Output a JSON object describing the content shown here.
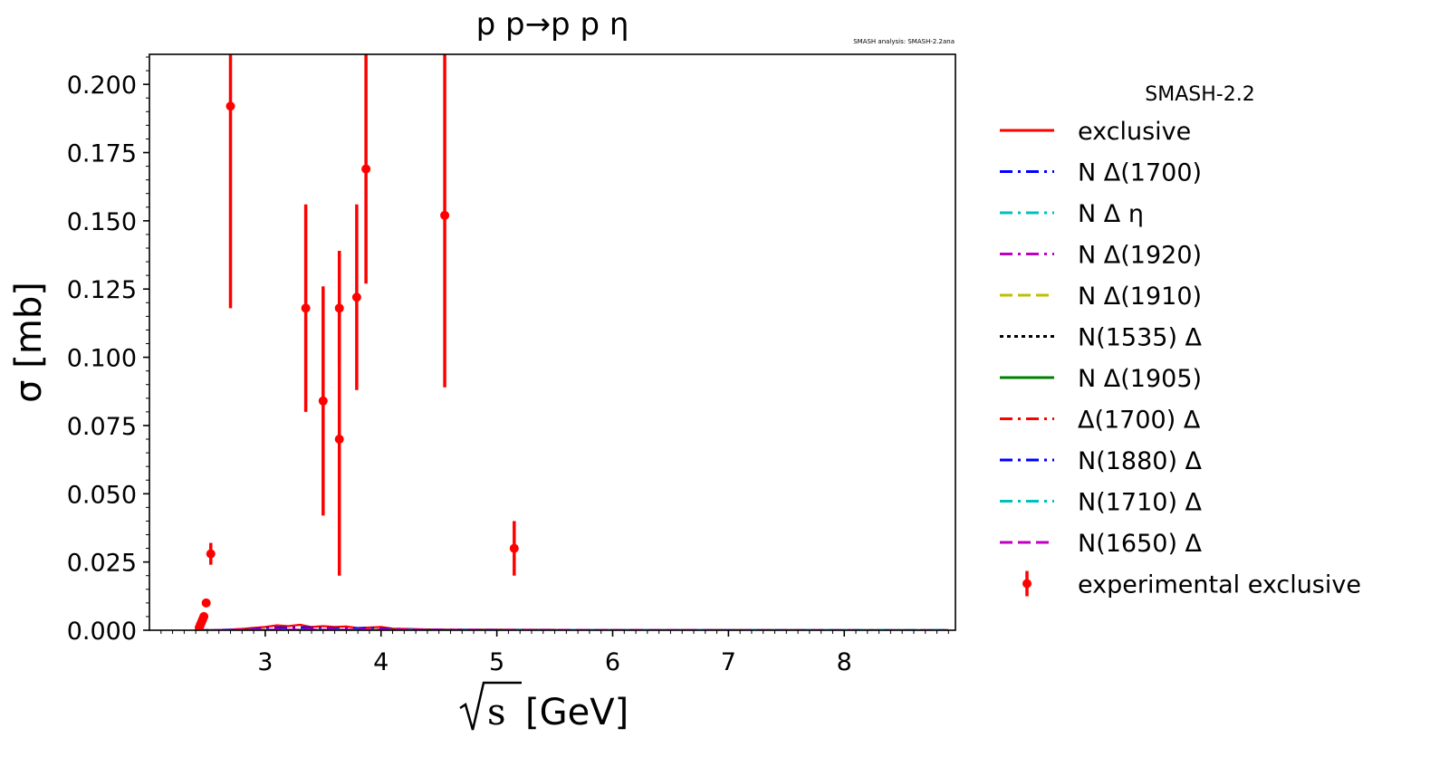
{
  "chart_data": {
    "type": "scatter",
    "title": "p p→p p η",
    "annotation": "SMASH analysis: SMASH-2.2ana",
    "xlabel_radical": "s",
    "xlabel_unit": "[GeV]",
    "ylabel": "σ [mb]",
    "xlim": [
      2.0,
      8.96
    ],
    "ylim": [
      0.0,
      0.211
    ],
    "xticks": [
      3,
      4,
      5,
      6,
      7,
      8
    ],
    "yticks": [
      0.0,
      0.025,
      0.05,
      0.075,
      0.1,
      0.125,
      0.15,
      0.175,
      0.2
    ],
    "ytick_labels": [
      "0.000",
      "0.025",
      "0.050",
      "0.075",
      "0.100",
      "0.125",
      "0.150",
      "0.175",
      "0.200"
    ],
    "grid": false,
    "legend": {
      "title": "SMASH-2.2",
      "placement": "outside-right",
      "entries": [
        {
          "label": "exclusive",
          "color": "#ff0000",
          "style": "solid"
        },
        {
          "label": "N Δ(1700)",
          "color": "#0000ff",
          "style": "dashdot"
        },
        {
          "label": "N Δ η",
          "color": "#00bfbf",
          "style": "dashdot"
        },
        {
          "label": "N Δ(1920)",
          "color": "#bf00bf",
          "style": "dashdot"
        },
        {
          "label": "N Δ(1910)",
          "color": "#bfbf00",
          "style": "dashed"
        },
        {
          "label": "N(1535) Δ",
          "color": "#000000",
          "style": "dotted"
        },
        {
          "label": "N Δ(1905)",
          "color": "#008000",
          "style": "solid"
        },
        {
          "label": "Δ(1700) Δ",
          "color": "#ff0000",
          "style": "dashdot"
        },
        {
          "label": "N(1880) Δ",
          "color": "#0000ff",
          "style": "dashdot"
        },
        {
          "label": "N(1710) Δ",
          "color": "#00bfbf",
          "style": "dashdot"
        },
        {
          "label": "N(1650) Δ",
          "color": "#bf00bf",
          "style": "dashed"
        },
        {
          "label": "experimental exclusive",
          "color": "#ff0000",
          "style": "errorbar"
        }
      ]
    },
    "experimental": [
      {
        "x": 2.43,
        "y": 0.001,
        "err": 0.0
      },
      {
        "x": 2.44,
        "y": 0.002,
        "err": 0.0
      },
      {
        "x": 2.45,
        "y": 0.003,
        "err": 0.0
      },
      {
        "x": 2.46,
        "y": 0.004,
        "err": 0.0
      },
      {
        "x": 2.47,
        "y": 0.005,
        "err": 0.0
      },
      {
        "x": 2.49,
        "y": 0.01,
        "err": 0.0
      },
      {
        "x": 2.53,
        "y": 0.028,
        "err": 0.004
      },
      {
        "x": 2.7,
        "y": 0.192,
        "err": 0.074
      },
      {
        "x": 3.35,
        "y": 0.118,
        "err": 0.038
      },
      {
        "x": 3.5,
        "y": 0.084,
        "err": 0.042
      },
      {
        "x": 3.64,
        "y": 0.118,
        "err": 0.021
      },
      {
        "x": 3.64,
        "y": 0.07,
        "err": 0.05
      },
      {
        "x": 3.79,
        "y": 0.122,
        "err": 0.034
      },
      {
        "x": 3.87,
        "y": 0.169,
        "err": 0.042
      },
      {
        "x": 4.55,
        "y": 0.152,
        "err": 0.063
      },
      {
        "x": 5.15,
        "y": 0.03,
        "err": 0.01
      }
    ],
    "series": [
      {
        "name": "exclusive",
        "color": "#ff0000",
        "style": "solid",
        "x": [
          2.4,
          2.6,
          2.8,
          3.0,
          3.1,
          3.2,
          3.3,
          3.4,
          3.5,
          3.6,
          3.7,
          3.8,
          3.9,
          4.0,
          4.1,
          4.2,
          4.4,
          4.6,
          5.0,
          6.0,
          7.0,
          8.0,
          8.9
        ],
        "y": [
          0.0,
          0.0,
          0.0005,
          0.0012,
          0.0018,
          0.0015,
          0.002,
          0.0012,
          0.0015,
          0.0012,
          0.0014,
          0.0008,
          0.001,
          0.0012,
          0.0006,
          0.0005,
          0.0003,
          0.0002,
          0.0002,
          0.0001,
          0.0001,
          0.0,
          0.0
        ]
      },
      {
        "name": "N Δ(1700)",
        "color": "#0000ff",
        "style": "dashdot",
        "x": [
          2.4,
          2.8,
          3.0,
          3.1,
          3.2,
          3.3,
          3.5,
          3.7,
          3.9,
          4.0,
          4.2,
          4.5,
          5.0,
          6.0,
          8.9
        ],
        "y": [
          0.0,
          0.0003,
          0.0008,
          0.001,
          0.0009,
          0.0011,
          0.0008,
          0.0007,
          0.0009,
          0.0006,
          0.0004,
          0.0002,
          0.0001,
          0.0001,
          0.0
        ]
      },
      {
        "name": "N Δ η",
        "color": "#00bfbf",
        "style": "dashdot",
        "x": [
          2.4,
          3.0,
          4.0,
          5.0,
          6.0,
          7.0,
          8.9
        ],
        "y": [
          0.0,
          0.0003,
          0.0002,
          0.0002,
          0.0001,
          0.0001,
          0.0001
        ]
      },
      {
        "name": "N Δ(1920)",
        "color": "#bf00bf",
        "style": "dashdot",
        "x": [
          2.4,
          3.0,
          3.5,
          4.0,
          5.0,
          8.9
        ],
        "y": [
          0.0,
          0.0004,
          0.0005,
          0.0003,
          0.0001,
          0.0
        ]
      },
      {
        "name": "N Δ(1910)",
        "color": "#bfbf00",
        "style": "dashed",
        "x": [
          2.4,
          3.0,
          4.0,
          6.0,
          8.9
        ],
        "y": [
          0.0,
          0.0001,
          0.0001,
          0.0,
          0.0
        ]
      },
      {
        "name": "N(1535) Δ",
        "color": "#000000",
        "style": "dotted",
        "x": [
          2.4,
          3.0,
          4.0,
          6.0,
          8.9
        ],
        "y": [
          0.0,
          0.0001,
          0.0001,
          0.0,
          0.0
        ]
      },
      {
        "name": "N Δ(1905)",
        "color": "#008000",
        "style": "solid",
        "x": [
          2.4,
          3.0,
          4.0,
          6.0,
          8.9
        ],
        "y": [
          0.0,
          0.0001,
          0.0001,
          0.0,
          0.0
        ]
      },
      {
        "name": "Δ(1700) Δ",
        "color": "#ff0000",
        "style": "dashdot",
        "x": [
          2.4,
          3.0,
          3.5,
          4.0,
          5.0,
          8.9
        ],
        "y": [
          0.0,
          0.0003,
          0.0004,
          0.0003,
          0.0001,
          0.0
        ]
      },
      {
        "name": "N(1880) Δ",
        "color": "#0000ff",
        "style": "dashdot",
        "x": [
          2.4,
          3.0,
          3.5,
          4.0,
          5.0,
          8.9
        ],
        "y": [
          0.0,
          0.0002,
          0.0003,
          0.0002,
          0.0001,
          0.0
        ]
      },
      {
        "name": "N(1710) Δ",
        "color": "#00bfbf",
        "style": "dashdot",
        "x": [
          2.4,
          3.0,
          4.0,
          6.0,
          8.9
        ],
        "y": [
          0.0,
          0.0001,
          0.0001,
          0.0001,
          0.0001
        ]
      },
      {
        "name": "N(1650) Δ",
        "color": "#bf00bf",
        "style": "dashed",
        "x": [
          2.4,
          3.0,
          4.0,
          6.0,
          8.9
        ],
        "y": [
          0.0,
          0.0002,
          0.0002,
          0.0001,
          0.0
        ]
      }
    ]
  }
}
